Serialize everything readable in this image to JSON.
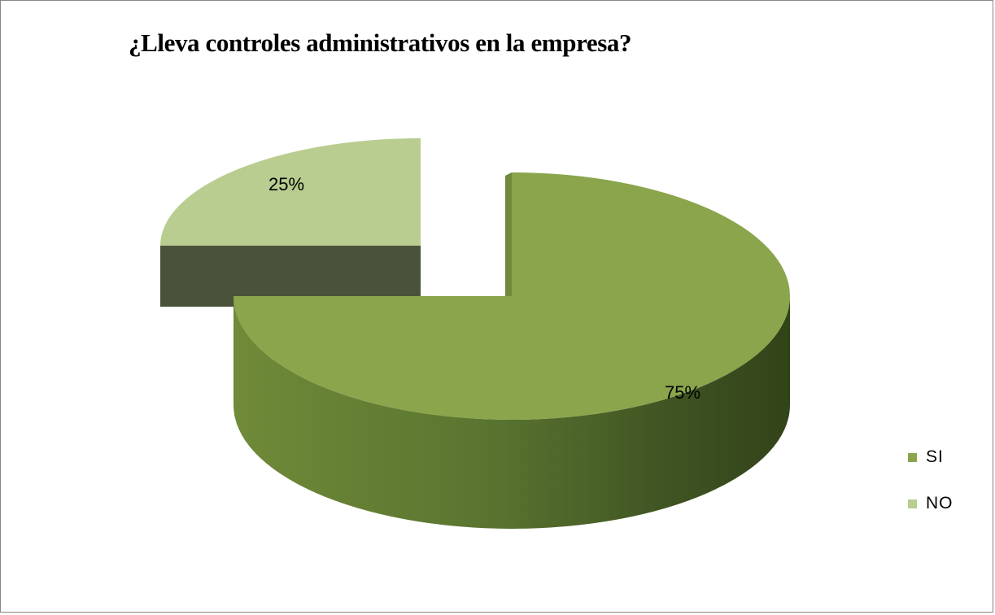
{
  "chart_data": {
    "type": "pie",
    "title": "¿Lleva controles administrativos en la empresa?",
    "categories": [
      "SI",
      "NO"
    ],
    "values": [
      75,
      25
    ],
    "data_labels": [
      "75%",
      "25%"
    ],
    "colors": {
      "SI": "#8aa54c",
      "NO": "#b8cd8f"
    },
    "style": "3d-exploded",
    "legend_position": "right"
  }
}
